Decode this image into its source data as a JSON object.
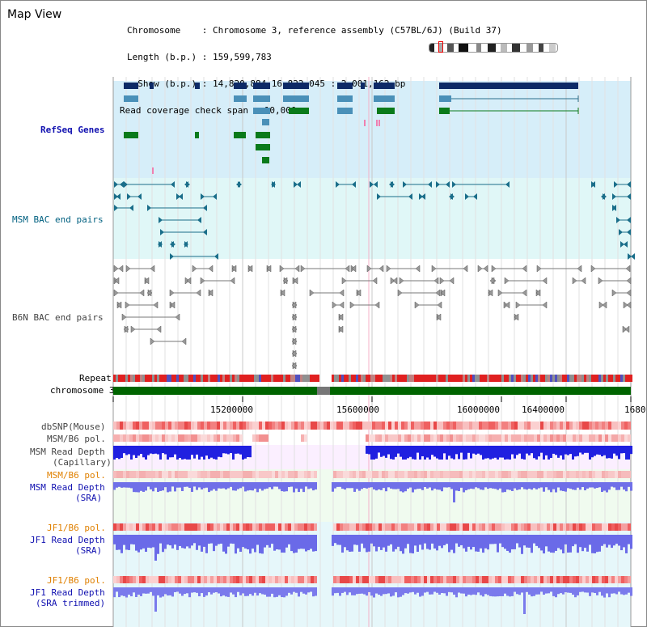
{
  "view_title": "Map View",
  "info": {
    "chromosome_line": "Chromosome    : Chromosome 3, reference assembly (C57BL/6J) (Build 37)",
    "length_line": "Length (b.p.) : 159,599,783",
    "show_line": "  Show (b.p.) : 14,820,884-16,822,045 : 2,001,162 bp",
    "coverage_line": "Read coverage check span : 10,000"
  },
  "tracks": {
    "refseq": "RefSeq Genes",
    "msm_bac": "MSM BAC end pairs",
    "b6n_bac": "B6N BAC end pairs",
    "repeat": "Repeat",
    "chromosome": "chromosome 3",
    "dbsnp": "dbSNP(Mouse)",
    "msm_b6_pol_1": "MSM/B6 pol.",
    "msm_read_depth_cap_1": "MSM Read Depth",
    "msm_read_depth_cap_2": "(Capillary)",
    "msm_b6_pol_2": "MSM/B6 pol.",
    "msm_read_depth_sra_1": "MSM Read Depth",
    "msm_read_depth_sra_2": "(SRA)",
    "jf1_b6_pol_1": "JF1/B6 pol.",
    "jf1_read_depth_sra_1": "JF1 Read Depth",
    "jf1_read_depth_sra_2": "(SRA)",
    "jf1_b6_pol_2": "JF1/B6 pol.",
    "jf1_read_depth_trim_1": "JF1 Read Depth",
    "jf1_read_depth_trim_2": "(SRA trimmed)"
  },
  "axis": {
    "ticks": [
      "15200000",
      "15600000",
      "16000000",
      "16400000",
      "1680"
    ]
  },
  "colors": {
    "refseq_bg": "#d6eef9",
    "msm_bac_bg": "#e0f7f7",
    "b6n_bg": "#ffffff",
    "lower_bg": "#e6f7fa",
    "gene_navy": "#0d2a66",
    "gene_teal": "#4a90b8",
    "gene_green": "#0a7a1a",
    "msm_line": "#1a6e8a",
    "b6n_line": "#555555",
    "label_blue": "#1010b0",
    "label_teal": "#006080",
    "label_orange": "#e08000"
  }
}
